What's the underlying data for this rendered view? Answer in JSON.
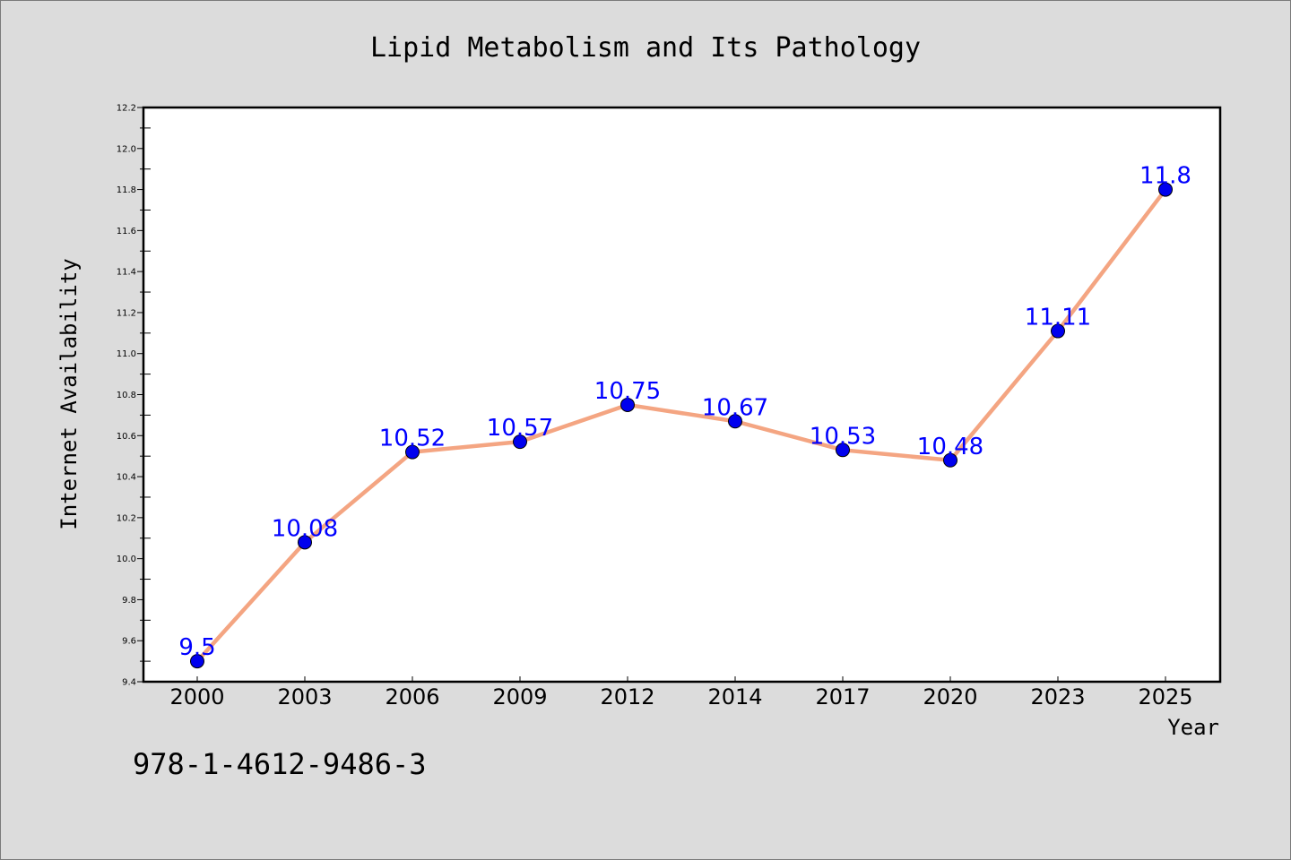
{
  "chart_data": {
    "type": "line",
    "title": "Lipid Metabolism and Its Pathology",
    "xlabel": "Year",
    "ylabel": "Internet Availability",
    "categories": [
      "2000",
      "2003",
      "2006",
      "2009",
      "2012",
      "2014",
      "2017",
      "2020",
      "2023",
      "2025"
    ],
    "series": [
      {
        "values": [
          9.5,
          10.08,
          10.52,
          10.57,
          10.75,
          10.67,
          10.53,
          10.48,
          11.11,
          11.8
        ],
        "labels": [
          "9.5",
          "10.08",
          "10.52",
          "10.57",
          "10.75",
          "10.67",
          "10.53",
          "10.48",
          "11.11",
          "11.8"
        ]
      }
    ],
    "ylim": [
      9.4,
      12.2
    ],
    "yticks": [
      "9.4",
      "9.6",
      "9.8",
      "10.0",
      "10.2",
      "10.4",
      "10.6",
      "10.8",
      "11.0",
      "11.2",
      "11.4",
      "11.6",
      "11.8",
      "12.0",
      "12.2"
    ],
    "ytick_values": [
      9.4,
      9.6,
      9.8,
      10.0,
      10.2,
      10.4,
      10.6,
      10.8,
      11.0,
      11.2,
      11.4,
      11.6,
      11.8,
      12.0,
      12.2
    ],
    "grid": false,
    "line_color": "#f4a582",
    "marker_color": "#0000ee",
    "label_color": "#0000ff"
  },
  "footer": {
    "isbn": "978-1-4612-9486-3"
  }
}
